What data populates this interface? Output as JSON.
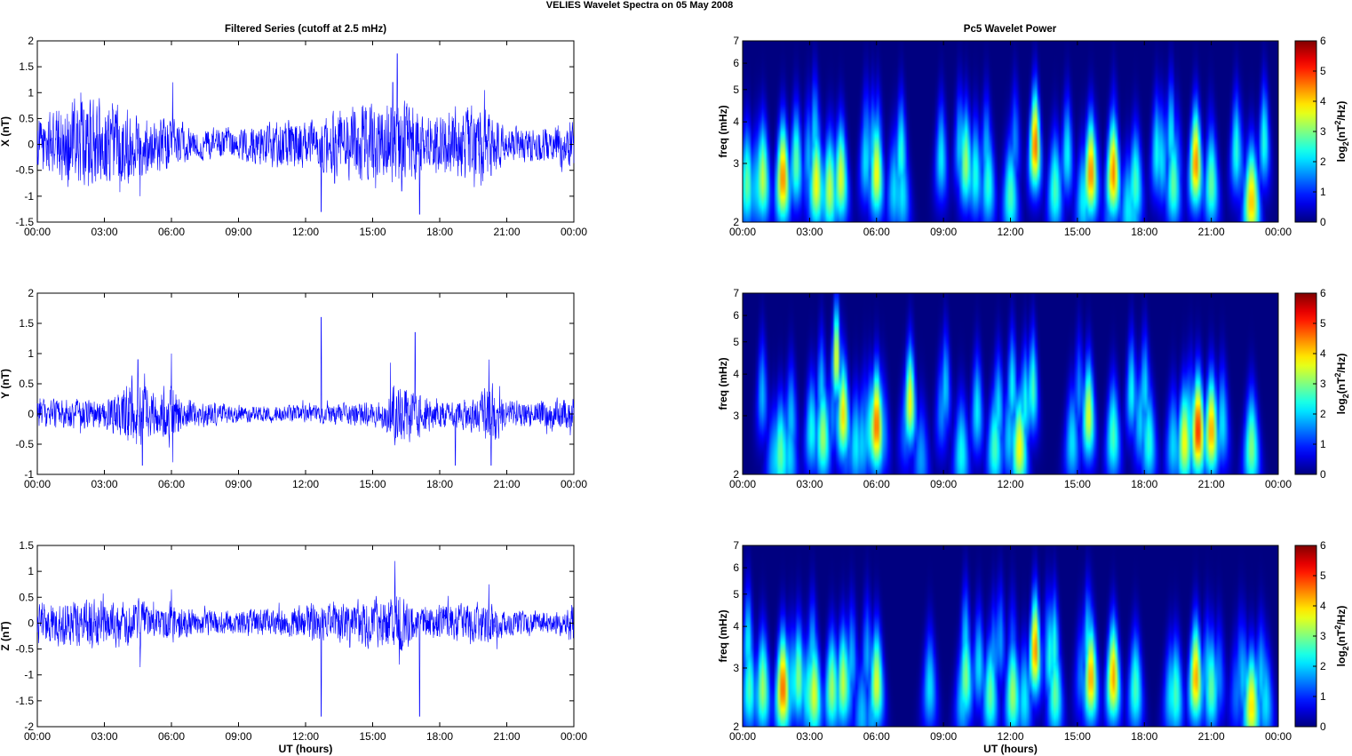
{
  "figure": {
    "title": "VELIES Wavelet Spectra on 05 May      2008",
    "left_title": "Filtered Series (cutoff at 2.5 mHz)",
    "right_title": "Pc5 Wavelet Power"
  },
  "chart_data": [
    {
      "type": "line",
      "component": "X",
      "ylabel": "X (nT)",
      "xlabel": "",
      "ylim": [
        -1.5,
        2
      ],
      "yticks": [
        "-1.5",
        "-1",
        "-0.5",
        "0",
        "0.5",
        "1",
        "1.5",
        "2"
      ],
      "xlim": [
        0,
        24
      ],
      "xtick_labels": [
        "00:00",
        "03:00",
        "06:00",
        "09:00",
        "12:00",
        "15:00",
        "18:00",
        "21:00",
        "00:00"
      ],
      "line_color": "#0000ff",
      "baseline_amplitude": 0.28,
      "noise_envelope": [
        [
          0,
          0.5
        ],
        [
          2,
          0.9
        ],
        [
          4,
          0.75
        ],
        [
          5,
          0.5
        ],
        [
          6,
          0.5
        ],
        [
          7,
          0.3
        ],
        [
          9,
          0.3
        ],
        [
          11,
          0.5
        ],
        [
          12.5,
          0.45
        ],
        [
          13,
          0.65
        ],
        [
          15.5,
          0.8
        ],
        [
          16.5,
          0.9
        ],
        [
          17.5,
          0.55
        ],
        [
          18.5,
          0.7
        ],
        [
          20,
          0.8
        ],
        [
          21,
          0.3
        ],
        [
          23,
          0.35
        ],
        [
          24,
          0.5
        ]
      ],
      "spikes": [
        {
          "t": 4.6,
          "value": -1.0
        },
        {
          "t": 6.05,
          "value": 1.2
        },
        {
          "t": 12.7,
          "value": -1.3
        },
        {
          "t": 13.3,
          "value": -0.75
        },
        {
          "t": 15.9,
          "value": 1.2
        },
        {
          "t": 16.1,
          "value": 1.75
        },
        {
          "t": 16.3,
          "value": -0.9
        },
        {
          "t": 17.1,
          "value": -1.35
        },
        {
          "t": 20.0,
          "value": 1.05
        },
        {
          "t": 20.3,
          "value": -0.6
        }
      ]
    },
    {
      "type": "line",
      "component": "Y",
      "ylabel": "Y (nT)",
      "xlabel": "",
      "ylim": [
        -1,
        2
      ],
      "yticks": [
        "-1",
        "-0.5",
        "0",
        "0.5",
        "1",
        "1.5",
        "2"
      ],
      "xlim": [
        0,
        24
      ],
      "xtick_labels": [
        "00:00",
        "03:00",
        "06:00",
        "09:00",
        "12:00",
        "15:00",
        "18:00",
        "21:00",
        "00:00"
      ],
      "line_color": "#0000ff",
      "baseline_amplitude": 0.2,
      "noise_envelope": [
        [
          0,
          0.35
        ],
        [
          3,
          0.35
        ],
        [
          4.5,
          0.85
        ],
        [
          5.2,
          0.45
        ],
        [
          6,
          0.75
        ],
        [
          6.5,
          0.35
        ],
        [
          9,
          0.2
        ],
        [
          12,
          0.2
        ],
        [
          15.5,
          0.3
        ],
        [
          16,
          0.7
        ],
        [
          17,
          0.55
        ],
        [
          18,
          0.3
        ],
        [
          19.5,
          0.4
        ],
        [
          20.3,
          0.75
        ],
        [
          21,
          0.3
        ],
        [
          24,
          0.4
        ]
      ],
      "spikes": [
        {
          "t": 4.5,
          "value": 0.9
        },
        {
          "t": 4.7,
          "value": -0.85
        },
        {
          "t": 6.0,
          "value": 1.0
        },
        {
          "t": 6.05,
          "value": -0.8
        },
        {
          "t": 12.7,
          "value": 1.6
        },
        {
          "t": 15.8,
          "value": 0.85
        },
        {
          "t": 16.9,
          "value": 1.35
        },
        {
          "t": 18.7,
          "value": -0.85
        },
        {
          "t": 20.2,
          "value": 0.9
        },
        {
          "t": 20.3,
          "value": -0.85
        }
      ]
    },
    {
      "type": "line",
      "component": "Z",
      "ylabel": "Z (nT)",
      "xlabel": "UT (hours)",
      "ylim": [
        -2,
        1.5
      ],
      "yticks": [
        "-2",
        "-1.5",
        "-1",
        "-0.5",
        "0",
        "0.5",
        "1",
        "1.5"
      ],
      "xlim": [
        0,
        24
      ],
      "xtick_labels": [
        "00:00",
        "03:00",
        "06:00",
        "09:00",
        "12:00",
        "15:00",
        "18:00",
        "21:00",
        "00:00"
      ],
      "line_color": "#0000ff",
      "baseline_amplitude": 0.22,
      "noise_envelope": [
        [
          0,
          0.45
        ],
        [
          2,
          0.6
        ],
        [
          4.5,
          0.55
        ],
        [
          5.5,
          0.35
        ],
        [
          6,
          0.55
        ],
        [
          7,
          0.3
        ],
        [
          11,
          0.35
        ],
        [
          12.5,
          0.5
        ],
        [
          13.5,
          0.5
        ],
        [
          15.5,
          0.6
        ],
        [
          16.2,
          0.8
        ],
        [
          17,
          0.45
        ],
        [
          19,
          0.45
        ],
        [
          20,
          0.55
        ],
        [
          21,
          0.3
        ],
        [
          23,
          0.3
        ],
        [
          24,
          0.5
        ]
      ],
      "spikes": [
        {
          "t": 4.6,
          "value": -0.85
        },
        {
          "t": 6.0,
          "value": 0.65
        },
        {
          "t": 12.7,
          "value": -1.8
        },
        {
          "t": 16.0,
          "value": 1.2
        },
        {
          "t": 16.2,
          "value": -0.8
        },
        {
          "t": 17.1,
          "value": -1.8
        },
        {
          "t": 20.2,
          "value": 0.75
        }
      ]
    },
    {
      "type": "heatmap",
      "component": "X",
      "ylabel": "freq (mHz)",
      "xlabel": "",
      "xlim": [
        0,
        24
      ],
      "xtick_labels": [
        "00:00",
        "03:00",
        "06:00",
        "09:00",
        "12:00",
        "15:00",
        "18:00",
        "21:00",
        "00:00"
      ],
      "ylim_mHz": [
        2,
        7
      ],
      "y_scale": "log",
      "yticks": [
        "2",
        "3",
        "4",
        "5",
        "6",
        "7"
      ],
      "colorbar_label": "log2(nT2/Hz)",
      "colorbar_ticks": [
        "0",
        "1",
        "2",
        "3",
        "4",
        "5",
        "6"
      ],
      "clim": [
        0,
        6
      ],
      "colormap": "jet",
      "blobs": [
        {
          "t": 0.2,
          "f": 2.6,
          "power": 3.2
        },
        {
          "t": 0.9,
          "f": 2.7,
          "power": 3.8
        },
        {
          "t": 1.8,
          "f": 2.7,
          "power": 5.0
        },
        {
          "t": 2.4,
          "f": 3.0,
          "power": 3.2
        },
        {
          "t": 3.3,
          "f": 2.6,
          "power": 4.2
        },
        {
          "t": 3.9,
          "f": 2.5,
          "power": 3.8
        },
        {
          "t": 4.4,
          "f": 2.7,
          "power": 4.0
        },
        {
          "t": 6.0,
          "f": 2.8,
          "power": 4.2
        },
        {
          "t": 7.1,
          "f": 3.2,
          "power": 2.8
        },
        {
          "t": 10.0,
          "f": 3.0,
          "power": 3.6
        },
        {
          "t": 11.0,
          "f": 2.6,
          "power": 2.8
        },
        {
          "t": 12.0,
          "f": 2.4,
          "power": 3.0
        },
        {
          "t": 13.1,
          "f": 3.4,
          "power": 5.2
        },
        {
          "t": 14.0,
          "f": 2.5,
          "power": 3.0
        },
        {
          "t": 15.6,
          "f": 2.8,
          "power": 5.0
        },
        {
          "t": 16.6,
          "f": 2.8,
          "power": 5.0
        },
        {
          "t": 17.6,
          "f": 2.6,
          "power": 3.0
        },
        {
          "t": 19.3,
          "f": 2.6,
          "power": 3.2
        },
        {
          "t": 20.3,
          "f": 3.0,
          "power": 5.0
        },
        {
          "t": 21.0,
          "f": 2.6,
          "power": 3.2
        },
        {
          "t": 22.8,
          "f": 2.3,
          "power": 4.6
        }
      ]
    },
    {
      "type": "heatmap",
      "component": "Y",
      "ylabel": "freq (mHz)",
      "xlabel": "",
      "xlim": [
        0,
        24
      ],
      "xtick_labels": [
        "00:00",
        "03:00",
        "06:00",
        "09:00",
        "12:00",
        "15:00",
        "18:00",
        "21:00",
        "00:00"
      ],
      "ylim_mHz": [
        2,
        7
      ],
      "y_scale": "log",
      "yticks": [
        "2",
        "3",
        "4",
        "5",
        "6",
        "7"
      ],
      "colorbar_label": "log2(nT2/Hz)",
      "colorbar_ticks": [
        "0",
        "1",
        "2",
        "3",
        "4",
        "5",
        "6"
      ],
      "clim": [
        0,
        6
      ],
      "colormap": "jet",
      "blobs": [
        {
          "t": 1.7,
          "f": 2.3,
          "power": 3.2
        },
        {
          "t": 3.6,
          "f": 2.6,
          "power": 3.6
        },
        {
          "t": 4.2,
          "f": 4.5,
          "power": 4.2
        },
        {
          "t": 4.5,
          "f": 3.0,
          "power": 4.4
        },
        {
          "t": 6.0,
          "f": 2.8,
          "power": 5.2
        },
        {
          "t": 7.5,
          "f": 3.3,
          "power": 4.2
        },
        {
          "t": 9.8,
          "f": 2.3,
          "power": 2.6
        },
        {
          "t": 11.3,
          "f": 2.4,
          "power": 3.0
        },
        {
          "t": 12.4,
          "f": 2.4,
          "power": 4.2
        },
        {
          "t": 13.0,
          "f": 3.6,
          "power": 3.0
        },
        {
          "t": 15.5,
          "f": 3.0,
          "power": 4.0
        },
        {
          "t": 16.6,
          "f": 2.6,
          "power": 3.0
        },
        {
          "t": 18.2,
          "f": 2.5,
          "power": 2.8
        },
        {
          "t": 19.8,
          "f": 2.5,
          "power": 4.2
        },
        {
          "t": 20.4,
          "f": 2.7,
          "power": 5.6
        },
        {
          "t": 21.0,
          "f": 2.7,
          "power": 4.8
        },
        {
          "t": 22.8,
          "f": 2.4,
          "power": 3.4
        }
      ]
    },
    {
      "type": "heatmap",
      "component": "Z",
      "ylabel": "freq (mHz)",
      "xlabel": "UT (hours)",
      "xlim": [
        0,
        24
      ],
      "xtick_labels": [
        "00:00",
        "03:00",
        "06:00",
        "09:00",
        "12:00",
        "15:00",
        "18:00",
        "21:00",
        "00:00"
      ],
      "ylim_mHz": [
        2,
        7
      ],
      "y_scale": "log",
      "yticks": [
        "2",
        "3",
        "4",
        "5",
        "6",
        "7"
      ],
      "colorbar_label": "log2(nT2/Hz)",
      "colorbar_ticks": [
        "0",
        "1",
        "2",
        "3",
        "4",
        "5",
        "6"
      ],
      "clim": [
        0,
        6
      ],
      "colormap": "jet",
      "blobs": [
        {
          "t": 0.3,
          "f": 2.6,
          "power": 3.0
        },
        {
          "t": 0.9,
          "f": 2.6,
          "power": 3.6
        },
        {
          "t": 1.8,
          "f": 2.6,
          "power": 5.2
        },
        {
          "t": 2.5,
          "f": 2.8,
          "power": 3.4
        },
        {
          "t": 3.2,
          "f": 2.5,
          "power": 4.0
        },
        {
          "t": 4.0,
          "f": 2.6,
          "power": 3.6
        },
        {
          "t": 4.5,
          "f": 2.7,
          "power": 3.8
        },
        {
          "t": 6.0,
          "f": 2.7,
          "power": 4.0
        },
        {
          "t": 10.0,
          "f": 2.8,
          "power": 3.4
        },
        {
          "t": 11.1,
          "f": 2.5,
          "power": 3.2
        },
        {
          "t": 12.1,
          "f": 2.5,
          "power": 3.6
        },
        {
          "t": 13.1,
          "f": 3.4,
          "power": 5.0
        },
        {
          "t": 14.0,
          "f": 2.5,
          "power": 3.2
        },
        {
          "t": 15.6,
          "f": 2.8,
          "power": 4.8
        },
        {
          "t": 16.6,
          "f": 2.8,
          "power": 4.8
        },
        {
          "t": 17.6,
          "f": 2.6,
          "power": 3.0
        },
        {
          "t": 19.4,
          "f": 2.5,
          "power": 3.0
        },
        {
          "t": 20.3,
          "f": 2.8,
          "power": 4.8
        },
        {
          "t": 21.0,
          "f": 2.6,
          "power": 3.2
        },
        {
          "t": 22.8,
          "f": 2.3,
          "power": 4.4
        }
      ]
    }
  ]
}
